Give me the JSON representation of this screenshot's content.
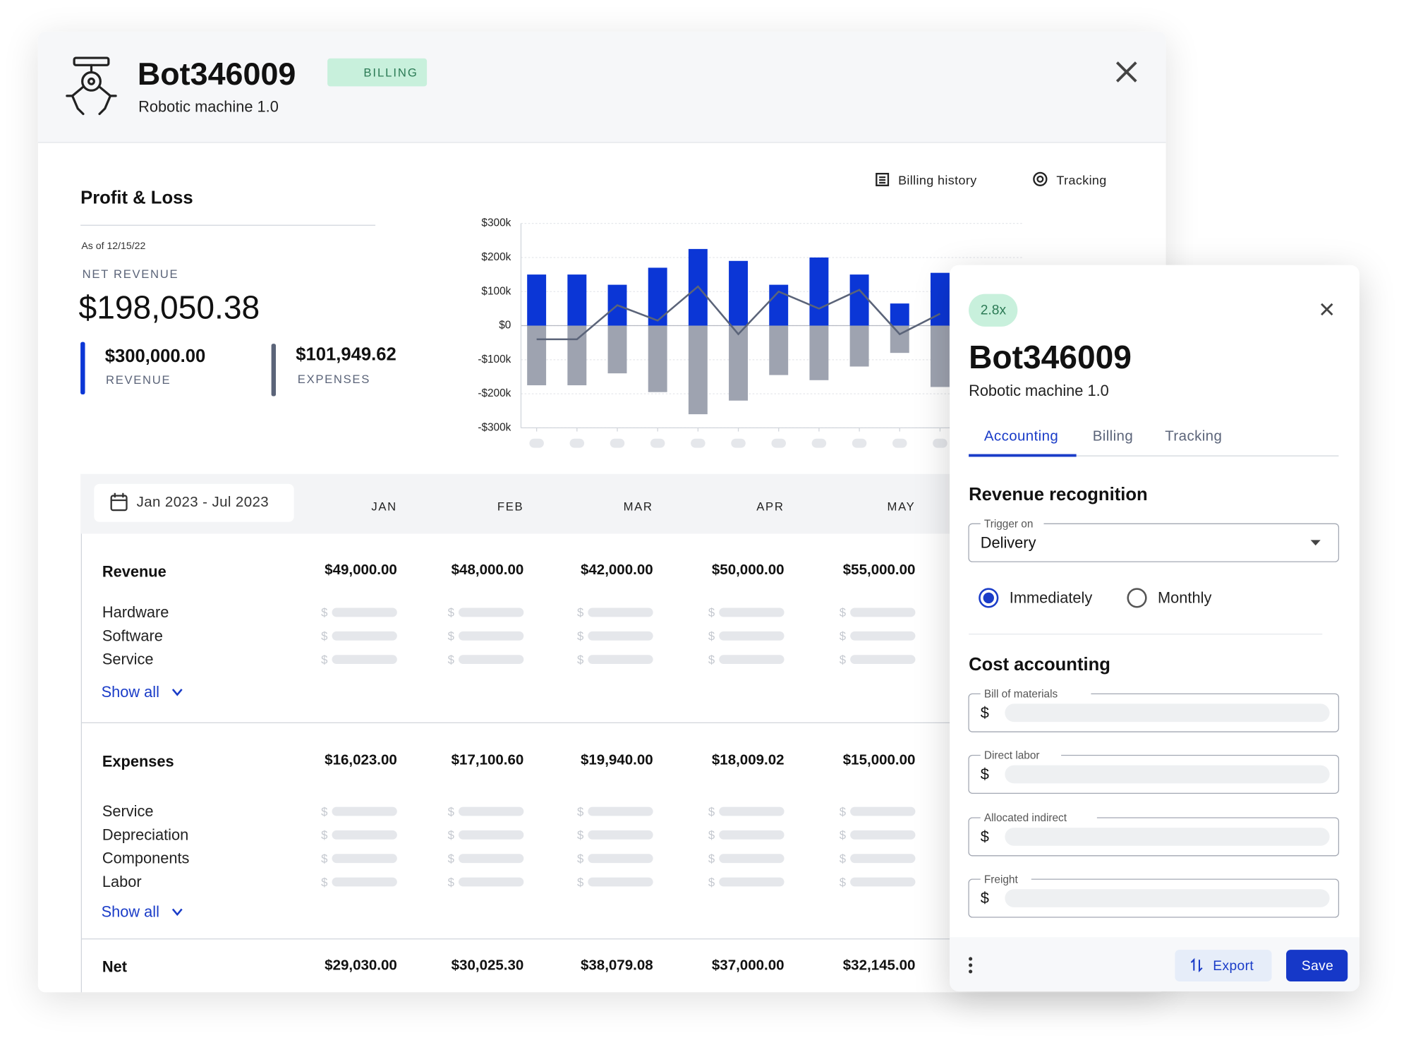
{
  "header": {
    "title": "Bot346009",
    "badge": "BILLING",
    "subtitle": "Robotic machine 1.0"
  },
  "actions": [
    "Billing history",
    "Tracking"
  ],
  "summary": {
    "title": "Profit & Loss",
    "as_of": "As of 12/15/22",
    "net_revenue_label": "NET REVENUE",
    "net_revenue": "$198,050.38",
    "revenue": "$300,000.00",
    "revenue_label": "REVENUE",
    "expenses": "$101,949.62",
    "expenses_label": "EXPENSES"
  },
  "chart_data": {
    "type": "bar",
    "categories": [
      null,
      null,
      null,
      null,
      null,
      null,
      null,
      null,
      null,
      null,
      null
    ],
    "series": [
      {
        "type": "bar",
        "color": "#0b36d6",
        "values": [
          150000,
          150000,
          120000,
          170000,
          225000,
          190000,
          120000,
          200000,
          150000,
          65000,
          155000
        ]
      },
      {
        "type": "bar",
        "color": "#9ea3b0",
        "values": [
          -175000,
          -175000,
          -140000,
          -195000,
          -260000,
          -220000,
          -145000,
          -160000,
          -120000,
          -80000,
          -180000
        ]
      },
      {
        "type": "line",
        "color": "#5b6479",
        "values": [
          -40000,
          -40000,
          60000,
          15000,
          115000,
          -25000,
          100000,
          50000,
          105000,
          -25000,
          35000
        ]
      }
    ],
    "ylim": [
      -300000,
      300000
    ],
    "yticks": [
      {
        "value": -300000,
        "label": "-$300k"
      },
      {
        "value": -200000,
        "label": "-$200k"
      },
      {
        "value": -100000,
        "label": "-$100k"
      },
      {
        "value": 0,
        "label": "$0"
      },
      {
        "value": 100000,
        "label": "$100k"
      },
      {
        "value": 200000,
        "label": "$200k"
      },
      {
        "value": 300000,
        "label": "$300k"
      }
    ],
    "grid": true
  },
  "table": {
    "date_range": "Jan 2023 - Jul 2023",
    "columns": [
      "JAN",
      "FEB",
      "MAR",
      "APR",
      "MAY"
    ],
    "currency": "$",
    "sections": [
      {
        "name": "Revenue",
        "totals": [
          "$49,000.00",
          "$48,000.00",
          "$42,000.00",
          "$50,000.00",
          "$55,000.00"
        ],
        "items": [
          "Hardware",
          "Software",
          "Service"
        ],
        "more": "Show all"
      },
      {
        "name": "Expenses",
        "totals": [
          "$16,023.00",
          "$17,100.60",
          "$19,940.00",
          "$18,009.02",
          "$15,000.00"
        ],
        "items": [
          "Service",
          "Depreciation",
          "Components",
          "Labor"
        ],
        "more": "Show all"
      }
    ],
    "net": {
      "name": "Net",
      "totals": [
        "$29,030.00",
        "$30,025.30",
        "$38,079.08",
        "$37,000.00",
        "$32,145.00"
      ]
    }
  },
  "panel": {
    "badge": "2.8x",
    "title": "Bot346009",
    "subtitle": "Robotic machine 1.0",
    "tabs": [
      "Accounting",
      "Billing",
      "Tracking"
    ],
    "revenue_title": "Revenue recognition",
    "trigger_label": "Trigger on",
    "trigger_value": "Delivery",
    "options": [
      "Immediately",
      "Monthly"
    ],
    "cost_title": "Cost accounting",
    "fields": [
      "Bill of materials",
      "Direct labor",
      "Allocated indirect",
      "Freight"
    ],
    "currency": "$",
    "export": "Export",
    "save": "Save"
  }
}
